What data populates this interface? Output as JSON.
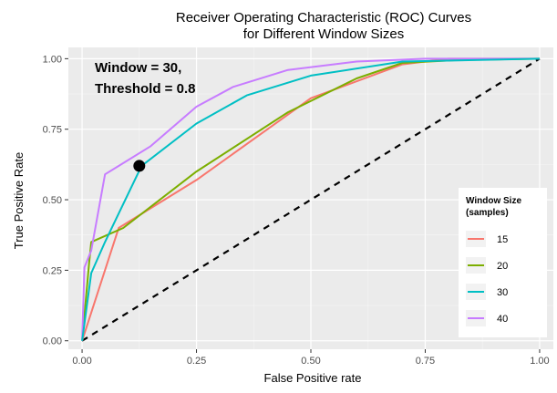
{
  "chart_data": {
    "type": "line",
    "title_line1": "Receiver Operating Characteristic (ROC) Curves",
    "title_line2": "for Different Window Sizes",
    "xlabel": "False Positive rate",
    "ylabel": "True Positive Rate",
    "xlim": [
      -0.03,
      1.03
    ],
    "ylim": [
      -0.03,
      1.04
    ],
    "x_ticks": [
      0.0,
      0.25,
      0.5,
      0.75,
      1.0
    ],
    "y_ticks": [
      0.0,
      0.25,
      0.5,
      0.75,
      1.0
    ],
    "x_tick_labels": [
      "0.00",
      "0.25",
      "0.50",
      "0.75",
      "1.00"
    ],
    "y_tick_labels": [
      "0.00",
      "0.25",
      "0.50",
      "0.75",
      "1.00"
    ],
    "grid": true,
    "panel_background": "#ebebeb",
    "legend": {
      "title_line1": "Window Size",
      "title_line2": "(samples)",
      "position": "bottom-right-inside"
    },
    "series": [
      {
        "name": "15",
        "color": "#f8766d",
        "x": [
          0.0,
          0.08,
          0.25,
          0.5,
          0.7,
          0.8,
          1.0
        ],
        "y": [
          0.0,
          0.4,
          0.57,
          0.86,
          0.98,
          1.0,
          1.0
        ]
      },
      {
        "name": "20",
        "color": "#7cae00",
        "x": [
          0.0,
          0.015,
          0.02,
          0.09,
          0.25,
          0.45,
          0.6,
          0.7,
          0.82,
          1.0
        ],
        "y": [
          0.0,
          0.27,
          0.35,
          0.4,
          0.6,
          0.81,
          0.93,
          0.985,
          0.995,
          1.0
        ]
      },
      {
        "name": "30",
        "color": "#00bfc4",
        "x": [
          0.0,
          0.02,
          0.05,
          0.13,
          0.25,
          0.36,
          0.5,
          0.7,
          1.0
        ],
        "y": [
          0.0,
          0.24,
          0.35,
          0.62,
          0.77,
          0.87,
          0.94,
          0.99,
          1.0
        ],
        "line_order": 1
      },
      {
        "name": "40",
        "color": "#c77cff",
        "x": [
          0.0,
          0.005,
          0.02,
          0.05,
          0.15,
          0.25,
          0.33,
          0.45,
          0.6,
          0.75,
          1.0
        ],
        "y": [
          0.0,
          0.26,
          0.32,
          0.59,
          0.69,
          0.83,
          0.9,
          0.96,
          0.99,
          1.0,
          1.0
        ]
      }
    ],
    "reference_line": {
      "x": [
        0.0,
        1.0
      ],
      "y": [
        0.0,
        1.0
      ],
      "style": "dashed",
      "color": "#000000"
    },
    "highlight_point": {
      "x": 0.125,
      "y": 0.62,
      "color": "#000000"
    },
    "annotation": {
      "line1": "Window = 30,",
      "line2": "Threshold = 0.8"
    }
  }
}
